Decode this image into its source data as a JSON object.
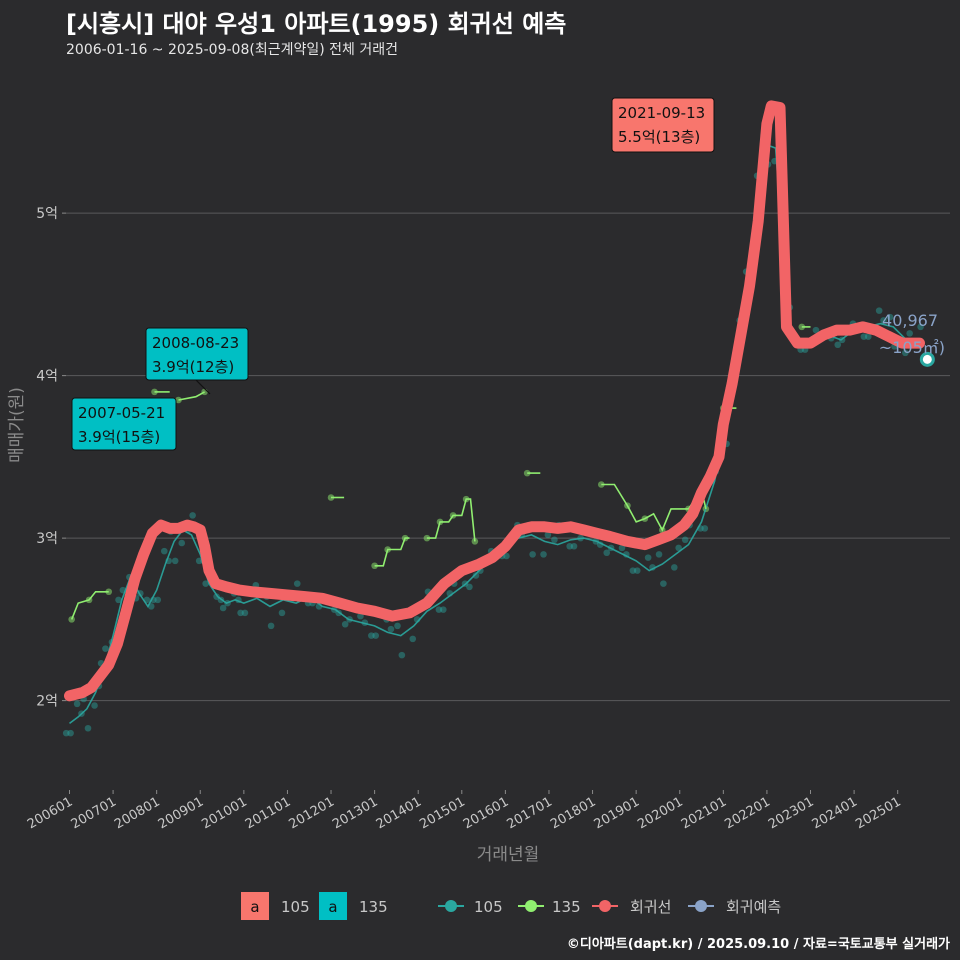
{
  "title": "[시흥시] 대야 우성1 아파트(1995) 회귀선 예측",
  "subtitle": "2006-01-16 ~ 2025-09-08(최근계약일) 전체 거래건",
  "credit": "©디아파트(dapt.kr) / 2025.09.10 / 자료=국토교통부 실거래가",
  "colors": {
    "background": "#2b2b2d",
    "grid": "#5a5a5c",
    "size105": "#2aa7a0",
    "size135": "#90ee70",
    "regression": "#f26466",
    "forecast": "#8aa3c8",
    "label105": "#f8766d",
    "label135": "#00bfc4"
  },
  "chart_data": {
    "type": "line",
    "title": "[시흥시] 대야 우성1 아파트(1995) 회귀선 예측",
    "xlabel": "거래년월",
    "ylabel": "매매가(원)",
    "x_ticks": [
      "200601",
      "200701",
      "200801",
      "200901",
      "201001",
      "201101",
      "201201",
      "201301",
      "201401",
      "201501",
      "201601",
      "201701",
      "201801",
      "201901",
      "202001",
      "202101",
      "202201",
      "202301",
      "202401",
      "202501"
    ],
    "y_ticks": [
      {
        "value": 2,
        "label": "2억"
      },
      {
        "value": 3,
        "label": "3억"
      },
      {
        "value": 4,
        "label": "4억"
      },
      {
        "value": 5,
        "label": "5억"
      }
    ],
    "ylim": [
      1.45,
      5.85
    ],
    "xlim": [
      2005.92,
      2026.2
    ],
    "units": "억원",
    "series": [
      {
        "name": "105",
        "style": "line+points",
        "points": [
          [
            2006.0,
            1.86
          ],
          [
            2006.2,
            1.9
          ],
          [
            2006.4,
            1.95
          ],
          [
            2006.6,
            2.05
          ],
          [
            2006.8,
            2.2
          ],
          [
            2007.0,
            2.4
          ],
          [
            2007.2,
            2.62
          ],
          [
            2007.4,
            2.76
          ],
          [
            2007.6,
            2.66
          ],
          [
            2007.8,
            2.58
          ],
          [
            2008.0,
            2.68
          ],
          [
            2008.2,
            2.84
          ],
          [
            2008.4,
            2.98
          ],
          [
            2008.6,
            3.05
          ],
          [
            2008.8,
            3.02
          ],
          [
            2009.0,
            2.9
          ],
          [
            2009.2,
            2.72
          ],
          [
            2009.4,
            2.64
          ],
          [
            2009.6,
            2.6
          ],
          [
            2009.8,
            2.62
          ],
          [
            2010.0,
            2.6
          ],
          [
            2010.3,
            2.63
          ],
          [
            2010.6,
            2.58
          ],
          [
            2010.9,
            2.62
          ],
          [
            2011.2,
            2.6
          ],
          [
            2011.5,
            2.64
          ],
          [
            2011.8,
            2.58
          ],
          [
            2012.1,
            2.56
          ],
          [
            2012.4,
            2.5
          ],
          [
            2012.7,
            2.48
          ],
          [
            2013.0,
            2.46
          ],
          [
            2013.3,
            2.42
          ],
          [
            2013.6,
            2.4
          ],
          [
            2013.9,
            2.46
          ],
          [
            2014.2,
            2.55
          ],
          [
            2014.5,
            2.6
          ],
          [
            2014.8,
            2.66
          ],
          [
            2015.1,
            2.72
          ],
          [
            2015.4,
            2.8
          ],
          [
            2015.7,
            2.88
          ],
          [
            2016.0,
            2.95
          ],
          [
            2016.3,
            3.0
          ],
          [
            2016.6,
            3.02
          ],
          [
            2016.9,
            2.98
          ],
          [
            2017.2,
            2.96
          ],
          [
            2017.5,
            2.99
          ],
          [
            2017.8,
            3.0
          ],
          [
            2018.1,
            2.98
          ],
          [
            2018.4,
            2.94
          ],
          [
            2018.7,
            2.9
          ],
          [
            2019.0,
            2.86
          ],
          [
            2019.3,
            2.8
          ],
          [
            2019.6,
            2.84
          ],
          [
            2019.9,
            2.9
          ],
          [
            2020.2,
            2.96
          ],
          [
            2020.5,
            3.1
          ],
          [
            2020.8,
            3.35
          ],
          [
            2021.0,
            3.6
          ],
          [
            2021.2,
            3.95
          ],
          [
            2021.4,
            4.3
          ],
          [
            2021.6,
            4.7
          ],
          [
            2021.8,
            5.15
          ],
          [
            2022.0,
            5.42
          ],
          [
            2022.2,
            5.4
          ],
          [
            2022.5,
            4.3
          ],
          [
            2022.8,
            4.2
          ],
          [
            2023.1,
            4.22
          ],
          [
            2023.4,
            4.25
          ],
          [
            2023.7,
            4.22
          ],
          [
            2024.0,
            4.28
          ],
          [
            2024.3,
            4.3
          ],
          [
            2024.6,
            4.32
          ],
          [
            2024.9,
            4.3
          ],
          [
            2025.2,
            4.22
          ],
          [
            2025.5,
            4.18
          ]
        ]
      },
      {
        "name": "135",
        "style": "line",
        "segments": [
          [
            [
              2006.05,
              2.5
            ],
            [
              2006.2,
              2.6
            ],
            [
              2006.45,
              2.62
            ],
            [
              2006.6,
              2.67
            ],
            [
              2006.9,
              2.67
            ]
          ],
          [
            [
              2007.95,
              3.9
            ],
            [
              2008.3,
              3.9
            ]
          ],
          [
            [
              2008.5,
              3.85
            ],
            [
              2008.9,
              3.87
            ],
            [
              2009.1,
              3.9
            ]
          ],
          [
            [
              2012.0,
              3.25
            ],
            [
              2012.3,
              3.25
            ]
          ],
          [
            [
              2013.0,
              2.83
            ],
            [
              2013.2,
              2.83
            ],
            [
              2013.3,
              2.93
            ],
            [
              2013.6,
              2.93
            ],
            [
              2013.7,
              3.0
            ],
            [
              2013.8,
              3.0
            ]
          ],
          [
            [
              2014.2,
              3.0
            ],
            [
              2014.4,
              3.0
            ],
            [
              2014.5,
              3.1
            ],
            [
              2014.7,
              3.1
            ],
            [
              2014.8,
              3.14
            ],
            [
              2015.0,
              3.14
            ],
            [
              2015.1,
              3.24
            ],
            [
              2015.2,
              3.24
            ],
            [
              2015.3,
              2.98
            ]
          ],
          [
            [
              2016.5,
              3.4
            ],
            [
              2016.8,
              3.4
            ]
          ],
          [
            [
              2018.2,
              3.33
            ],
            [
              2018.5,
              3.33
            ],
            [
              2018.8,
              3.2
            ],
            [
              2019.0,
              3.1
            ],
            [
              2019.2,
              3.12
            ],
            [
              2019.4,
              3.15
            ],
            [
              2019.6,
              3.05
            ],
            [
              2019.8,
              3.18
            ],
            [
              2020.2,
              3.18
            ],
            [
              2020.5,
              3.3
            ],
            [
              2020.6,
              3.18
            ]
          ],
          [
            [
              2021.0,
              3.8
            ],
            [
              2021.3,
              3.8
            ]
          ],
          [
            [
              2022.8,
              4.3
            ],
            [
              2023.0,
              4.3
            ]
          ]
        ]
      },
      {
        "name": "회귀선",
        "style": "thick-line",
        "points": [
          [
            2006.0,
            2.03
          ],
          [
            2006.3,
            2.05
          ],
          [
            2006.5,
            2.08
          ],
          [
            2006.7,
            2.15
          ],
          [
            2006.9,
            2.22
          ],
          [
            2007.1,
            2.35
          ],
          [
            2007.3,
            2.55
          ],
          [
            2007.5,
            2.75
          ],
          [
            2007.7,
            2.9
          ],
          [
            2007.9,
            3.03
          ],
          [
            2008.1,
            3.08
          ],
          [
            2008.3,
            3.06
          ],
          [
            2008.5,
            3.06
          ],
          [
            2008.7,
            3.08
          ],
          [
            2008.85,
            3.07
          ],
          [
            2009.0,
            3.05
          ],
          [
            2009.1,
            2.95
          ],
          [
            2009.2,
            2.8
          ],
          [
            2009.35,
            2.72
          ],
          [
            2009.6,
            2.7
          ],
          [
            2009.9,
            2.68
          ],
          [
            2010.2,
            2.67
          ],
          [
            2010.6,
            2.66
          ],
          [
            2011.0,
            2.65
          ],
          [
            2011.4,
            2.64
          ],
          [
            2011.8,
            2.63
          ],
          [
            2012.2,
            2.6
          ],
          [
            2012.6,
            2.57
          ],
          [
            2013.0,
            2.55
          ],
          [
            2013.4,
            2.52
          ],
          [
            2013.8,
            2.54
          ],
          [
            2014.2,
            2.6
          ],
          [
            2014.6,
            2.72
          ],
          [
            2015.0,
            2.8
          ],
          [
            2015.4,
            2.84
          ],
          [
            2015.7,
            2.88
          ],
          [
            2016.0,
            2.95
          ],
          [
            2016.3,
            3.05
          ],
          [
            2016.6,
            3.07
          ],
          [
            2016.9,
            3.07
          ],
          [
            2017.2,
            3.06
          ],
          [
            2017.5,
            3.07
          ],
          [
            2017.8,
            3.05
          ],
          [
            2018.1,
            3.03
          ],
          [
            2018.4,
            3.01
          ],
          [
            2018.8,
            2.98
          ],
          [
            2019.2,
            2.96
          ],
          [
            2019.5,
            2.99
          ],
          [
            2019.8,
            3.02
          ],
          [
            2020.1,
            3.08
          ],
          [
            2020.3,
            3.15
          ],
          [
            2020.5,
            3.28
          ],
          [
            2020.7,
            3.38
          ],
          [
            2020.9,
            3.5
          ],
          [
            2021.0,
            3.7
          ],
          [
            2021.2,
            3.95
          ],
          [
            2021.4,
            4.25
          ],
          [
            2021.6,
            4.55
          ],
          [
            2021.8,
            4.95
          ],
          [
            2022.0,
            5.55
          ],
          [
            2022.1,
            5.66
          ],
          [
            2022.3,
            5.65
          ],
          [
            2022.45,
            4.3
          ],
          [
            2022.7,
            4.2
          ],
          [
            2023.0,
            4.2
          ],
          [
            2023.3,
            4.25
          ],
          [
            2023.6,
            4.28
          ],
          [
            2023.9,
            4.28
          ],
          [
            2024.2,
            4.3
          ],
          [
            2024.5,
            4.28
          ],
          [
            2024.8,
            4.24
          ],
          [
            2025.1,
            4.2
          ],
          [
            2025.5,
            4.2
          ]
        ]
      },
      {
        "name": "회귀예측",
        "style": "point",
        "points": [
          [
            2025.68,
            4.1
          ]
        ]
      }
    ],
    "annotations": [
      {
        "date": "2008-08-23",
        "price": "3.9억(12층)",
        "size": "135"
      },
      {
        "date": "2007-05-21",
        "price": "3.9억(15층)",
        "size": "135"
      },
      {
        "date": "2021-09-13",
        "price": "5.5억(13층)",
        "size": "105"
      }
    ],
    "forecast_label": {
      "value": "40,967",
      "area": "~105㎡)"
    },
    "legend": {
      "fill_items": [
        {
          "key": "a",
          "label": "105"
        },
        {
          "key": "a",
          "label": "135"
        }
      ],
      "line_items": [
        "105",
        "135",
        "회귀선",
        "회귀예측"
      ],
      "position": "bottom"
    }
  }
}
